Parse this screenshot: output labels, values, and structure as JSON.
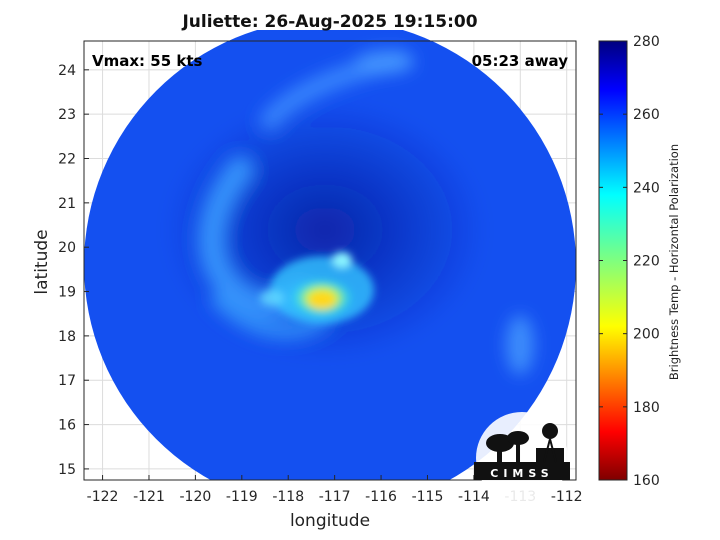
{
  "chart_data": {
    "type": "heatmap",
    "title": "Juliette: 26-Aug-2025 19:15:00",
    "annotations": {
      "vmax": "Vmax: 55 kts",
      "away": "05:23 away"
    },
    "xlabel": "longitude",
    "ylabel": "latitude",
    "xlim": [
      -122.4,
      -111.8
    ],
    "ylim": [
      14.75,
      24.65
    ],
    "xticks": [
      -122,
      -121,
      -120,
      -119,
      -118,
      -117,
      -116,
      -115,
      -114,
      -113,
      -112
    ],
    "yticks": [
      15,
      16,
      17,
      18,
      19,
      20,
      21,
      22,
      23,
      24
    ],
    "grid": true,
    "colorbar": {
      "label": "Brightness Temp - Horizontal Polarization",
      "range": [
        160,
        280
      ],
      "ticks": [
        160,
        180,
        200,
        220,
        240,
        260,
        280
      ],
      "colormap": "jet"
    },
    "swath_center": [
      -117.1,
      19.6
    ],
    "features": {
      "background_brightness_temp": 263,
      "eye_center": [
        -117.35,
        18.85
      ],
      "min_brightness_temp": 205,
      "rain_band_tb_range": [
        230,
        248
      ]
    },
    "logo": "CIMSS"
  },
  "colors": {
    "background": "#ffffff",
    "grid": "#dcdcdc",
    "axis": "#262626"
  }
}
